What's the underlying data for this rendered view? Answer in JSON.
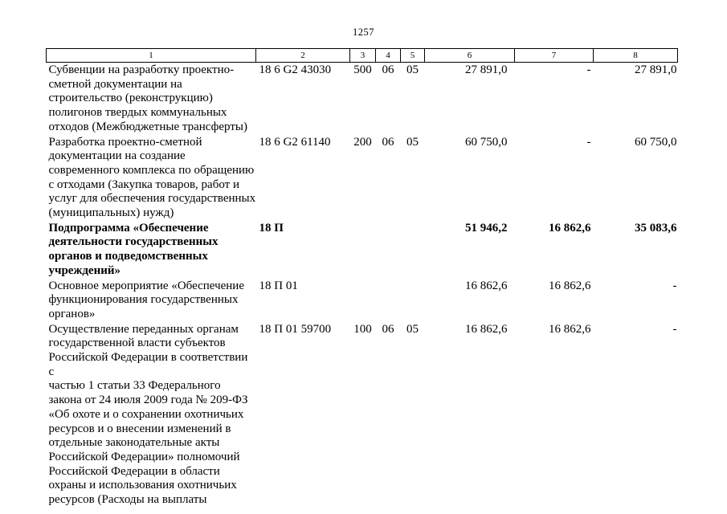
{
  "page": {
    "number": "1257"
  },
  "table": {
    "header": [
      "1",
      "2",
      "3",
      "4",
      "5",
      "6",
      "7",
      "8"
    ],
    "rows": [
      {
        "name": "Субвенции на разработку проектно-\nсметной документации на\nстроительство (реконструкцию)\nполигонов твердых коммунальных\nотходов (Межбюджетные трансферты)",
        "code": "18 6 G2 43030",
        "c3": "500",
        "c4": "06",
        "c5": "05",
        "c6": "27 891,0",
        "c7": "-",
        "c8": "27 891,0",
        "bold": false
      },
      {
        "name": "Разработка проектно-сметной\nдокументации на создание\nсовременного комплекса по обращению\nс отходами (Закупка товаров, работ и\nуслуг для обеспечения государственных\n(муниципальных) нужд)",
        "code": "18 6 G2 61140",
        "c3": "200",
        "c4": "06",
        "c5": "05",
        "c6": "60 750,0",
        "c7": "-",
        "c8": "60 750,0",
        "bold": false
      },
      {
        "name": "Подпрограмма «Обеспечение\nдеятельности государственных\nорганов и подведомственных\nучреждений»",
        "code": "18 П",
        "c3": "",
        "c4": "",
        "c5": "",
        "c6": "51 946,2",
        "c7": "16 862,6",
        "c8": "35 083,6",
        "bold": true
      },
      {
        "name": "Основное мероприятие «Обеспечение\nфункционирования государственных\nорганов»",
        "code": "18 П 01",
        "c3": "",
        "c4": "",
        "c5": "",
        "c6": "16 862,6",
        "c7": "16 862,6",
        "c8": "-",
        "bold": false
      },
      {
        "name": "Осуществление переданных органам\nгосударственной власти субъектов\nРоссийской Федерации в соответствии с\nчастью 1 статьи 33 Федерального\nзакона от 24 июля 2009 года № 209-ФЗ\n«Об охоте и о сохранении охотничьих\nресурсов и о внесении изменений в\nотдельные законодательные акты\nРоссийской Федерации» полномочий\nРоссийской Федерации в области\nохраны и использования охотничьих\nресурсов (Расходы на выплаты",
        "code": "18 П 01 59700",
        "c3": "100",
        "c4": "06",
        "c5": "05",
        "c6": "16 862,6",
        "c7": "16 862,6",
        "c8": "-",
        "bold": false
      }
    ]
  }
}
